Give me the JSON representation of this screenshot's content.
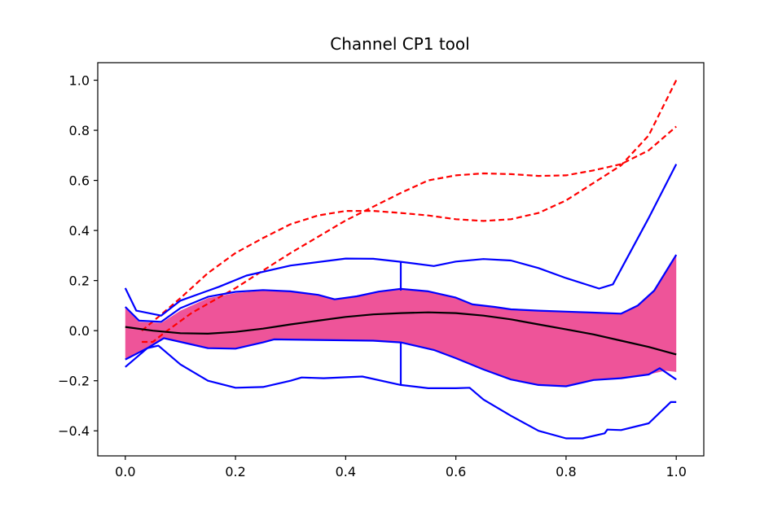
{
  "chart_data": {
    "type": "line",
    "title": "Channel CP1 tool",
    "xlim": [
      -0.05,
      1.05
    ],
    "ylim": [
      -0.5,
      1.07
    ],
    "xticks": [
      0.0,
      0.2,
      0.4,
      0.6,
      0.8,
      1.0
    ],
    "xtick_labels": [
      "0.0",
      "0.2",
      "0.4",
      "0.6",
      "0.8",
      "1.0"
    ],
    "yticks": [
      -0.4,
      -0.2,
      0.0,
      0.2,
      0.4,
      0.6,
      0.8,
      1.0
    ],
    "ytick_labels": [
      "−0.4",
      "−0.2",
      "0.0",
      "0.2",
      "0.4",
      "0.6",
      "0.8",
      "1.0"
    ],
    "grid": false,
    "colors": {
      "band_fill": "#ee5499",
      "envelope": "#0000ff",
      "mean": "#000000",
      "reference": "#ff0000"
    },
    "band": {
      "upper": [
        [
          0.0,
          0.09
        ],
        [
          0.025,
          0.035
        ],
        [
          0.065,
          0.03
        ],
        [
          0.1,
          0.08
        ],
        [
          0.15,
          0.13
        ],
        [
          0.2,
          0.15
        ],
        [
          0.25,
          0.16
        ],
        [
          0.3,
          0.155
        ],
        [
          0.35,
          0.14
        ],
        [
          0.38,
          0.125
        ],
        [
          0.42,
          0.135
        ],
        [
          0.46,
          0.155
        ],
        [
          0.5,
          0.165
        ],
        [
          0.55,
          0.155
        ],
        [
          0.6,
          0.13
        ],
        [
          0.63,
          0.105
        ],
        [
          0.67,
          0.095
        ],
        [
          0.7,
          0.085
        ],
        [
          0.75,
          0.08
        ],
        [
          0.8,
          0.075
        ],
        [
          0.85,
          0.07
        ],
        [
          0.9,
          0.068
        ],
        [
          0.93,
          0.1
        ],
        [
          0.96,
          0.16
        ],
        [
          1.0,
          0.3
        ]
      ],
      "lower": [
        [
          0.0,
          -0.115
        ],
        [
          0.04,
          -0.07
        ],
        [
          0.07,
          -0.03
        ],
        [
          0.1,
          -0.045
        ],
        [
          0.15,
          -0.07
        ],
        [
          0.2,
          -0.07
        ],
        [
          0.25,
          -0.045
        ],
        [
          0.27,
          -0.035
        ],
        [
          0.35,
          -0.037
        ],
        [
          0.45,
          -0.04
        ],
        [
          0.5,
          -0.045
        ],
        [
          0.56,
          -0.075
        ],
        [
          0.6,
          -0.11
        ],
        [
          0.65,
          -0.155
        ],
        [
          0.7,
          -0.195
        ],
        [
          0.75,
          -0.215
        ],
        [
          0.8,
          -0.22
        ],
        [
          0.85,
          -0.195
        ],
        [
          0.9,
          -0.19
        ],
        [
          0.95,
          -0.175
        ],
        [
          0.98,
          -0.16
        ],
        [
          1.0,
          -0.165
        ]
      ]
    },
    "series": [
      {
        "role": "reference",
        "dashed": true,
        "points": [
          [
            0.03,
            -0.045
          ],
          [
            0.05,
            -0.045
          ],
          [
            0.07,
            -0.01
          ],
          [
            0.12,
            0.07
          ],
          [
            0.2,
            0.17
          ],
          [
            0.3,
            0.31
          ],
          [
            0.4,
            0.44
          ],
          [
            0.5,
            0.55
          ],
          [
            0.55,
            0.6
          ],
          [
            0.6,
            0.62
          ],
          [
            0.65,
            0.628
          ],
          [
            0.7,
            0.625
          ],
          [
            0.75,
            0.618
          ],
          [
            0.8,
            0.62
          ],
          [
            0.85,
            0.64
          ],
          [
            0.9,
            0.665
          ],
          [
            0.95,
            0.72
          ],
          [
            1.0,
            0.815
          ]
        ]
      },
      {
        "role": "reference",
        "dashed": true,
        "points": [
          [
            0.03,
            0.0
          ],
          [
            0.06,
            0.055
          ],
          [
            0.1,
            0.13
          ],
          [
            0.15,
            0.23
          ],
          [
            0.2,
            0.31
          ],
          [
            0.25,
            0.37
          ],
          [
            0.3,
            0.425
          ],
          [
            0.35,
            0.46
          ],
          [
            0.4,
            0.478
          ],
          [
            0.45,
            0.478
          ],
          [
            0.5,
            0.47
          ],
          [
            0.55,
            0.46
          ],
          [
            0.6,
            0.445
          ],
          [
            0.65,
            0.438
          ],
          [
            0.7,
            0.445
          ],
          [
            0.75,
            0.47
          ],
          [
            0.8,
            0.52
          ],
          [
            0.85,
            0.59
          ],
          [
            0.9,
            0.66
          ],
          [
            0.95,
            0.78
          ],
          [
            1.0,
            1.0
          ]
        ]
      },
      {
        "role": "envelope",
        "points": [
          [
            0.0,
            0.17
          ],
          [
            0.02,
            0.08
          ],
          [
            0.065,
            0.06
          ],
          [
            0.1,
            0.12
          ],
          [
            0.17,
            0.175
          ],
          [
            0.22,
            0.22
          ],
          [
            0.3,
            0.26
          ],
          [
            0.4,
            0.288
          ],
          [
            0.45,
            0.287
          ],
          [
            0.5,
            0.275
          ],
          [
            0.56,
            0.258
          ],
          [
            0.6,
            0.276
          ],
          [
            0.65,
            0.286
          ],
          [
            0.7,
            0.28
          ],
          [
            0.75,
            0.25
          ],
          [
            0.8,
            0.21
          ],
          [
            0.86,
            0.168
          ],
          [
            0.885,
            0.185
          ],
          [
            0.95,
            0.45
          ],
          [
            1.0,
            0.665
          ]
        ]
      },
      {
        "role": "envelope",
        "points": [
          [
            0.0,
            0.095
          ],
          [
            0.025,
            0.04
          ],
          [
            0.065,
            0.035
          ],
          [
            0.1,
            0.09
          ],
          [
            0.15,
            0.135
          ],
          [
            0.2,
            0.155
          ],
          [
            0.25,
            0.162
          ],
          [
            0.3,
            0.157
          ],
          [
            0.35,
            0.143
          ],
          [
            0.38,
            0.125
          ],
          [
            0.42,
            0.137
          ],
          [
            0.46,
            0.156
          ],
          [
            0.5,
            0.167
          ],
          [
            0.55,
            0.157
          ],
          [
            0.6,
            0.132
          ],
          [
            0.63,
            0.105
          ],
          [
            0.67,
            0.095
          ],
          [
            0.7,
            0.085
          ],
          [
            0.75,
            0.08
          ],
          [
            0.8,
            0.076
          ],
          [
            0.85,
            0.072
          ],
          [
            0.9,
            0.068
          ],
          [
            0.93,
            0.1
          ],
          [
            0.96,
            0.16
          ],
          [
            1.0,
            0.303
          ]
        ]
      },
      {
        "role": "envelope",
        "points": [
          [
            0.0,
            -0.115
          ],
          [
            0.04,
            -0.07
          ],
          [
            0.07,
            -0.03
          ],
          [
            0.1,
            -0.045
          ],
          [
            0.15,
            -0.07
          ],
          [
            0.2,
            -0.072
          ],
          [
            0.25,
            -0.047
          ],
          [
            0.27,
            -0.035
          ],
          [
            0.35,
            -0.037
          ],
          [
            0.45,
            -0.04
          ],
          [
            0.5,
            -0.047
          ],
          [
            0.56,
            -0.077
          ],
          [
            0.6,
            -0.11
          ],
          [
            0.65,
            -0.155
          ],
          [
            0.7,
            -0.195
          ],
          [
            0.75,
            -0.217
          ],
          [
            0.8,
            -0.222
          ],
          [
            0.85,
            -0.197
          ],
          [
            0.9,
            -0.19
          ],
          [
            0.95,
            -0.175
          ],
          [
            0.97,
            -0.15
          ],
          [
            1.0,
            -0.195
          ]
        ]
      },
      {
        "role": "envelope",
        "points": [
          [
            0.0,
            -0.145
          ],
          [
            0.04,
            -0.07
          ],
          [
            0.06,
            -0.06
          ],
          [
            0.1,
            -0.135
          ],
          [
            0.15,
            -0.2
          ],
          [
            0.2,
            -0.228
          ],
          [
            0.25,
            -0.225
          ],
          [
            0.3,
            -0.2
          ],
          [
            0.32,
            -0.187
          ],
          [
            0.36,
            -0.19
          ],
          [
            0.43,
            -0.183
          ],
          [
            0.5,
            -0.217
          ],
          [
            0.55,
            -0.23
          ],
          [
            0.6,
            -0.23
          ],
          [
            0.625,
            -0.228
          ],
          [
            0.65,
            -0.275
          ],
          [
            0.7,
            -0.34
          ],
          [
            0.75,
            -0.4
          ],
          [
            0.8,
            -0.43
          ],
          [
            0.83,
            -0.43
          ],
          [
            0.87,
            -0.41
          ],
          [
            0.875,
            -0.395
          ],
          [
            0.9,
            -0.397
          ],
          [
            0.95,
            -0.37
          ],
          [
            0.99,
            -0.285
          ],
          [
            1.0,
            -0.285
          ]
        ]
      },
      {
        "role": "marker",
        "points": [
          [
            0.5,
            0.275
          ],
          [
            0.5,
            0.16
          ]
        ]
      },
      {
        "role": "marker",
        "points": [
          [
            0.5,
            -0.047
          ],
          [
            0.5,
            -0.217
          ]
        ]
      },
      {
        "role": "mean",
        "points": [
          [
            0.0,
            0.015
          ],
          [
            0.05,
            0.0
          ],
          [
            0.1,
            -0.01
          ],
          [
            0.15,
            -0.012
          ],
          [
            0.2,
            -0.005
          ],
          [
            0.25,
            0.008
          ],
          [
            0.3,
            0.025
          ],
          [
            0.35,
            0.04
          ],
          [
            0.4,
            0.055
          ],
          [
            0.45,
            0.065
          ],
          [
            0.5,
            0.07
          ],
          [
            0.55,
            0.073
          ],
          [
            0.6,
            0.07
          ],
          [
            0.65,
            0.06
          ],
          [
            0.7,
            0.045
          ],
          [
            0.75,
            0.025
          ],
          [
            0.8,
            0.005
          ],
          [
            0.85,
            -0.015
          ],
          [
            0.9,
            -0.04
          ],
          [
            0.95,
            -0.065
          ],
          [
            1.0,
            -0.095
          ]
        ]
      }
    ]
  }
}
